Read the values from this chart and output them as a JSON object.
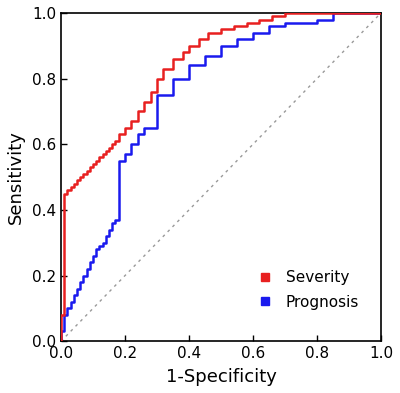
{
  "severity_fpr": [
    0.0,
    0.0,
    0.01,
    0.01,
    0.02,
    0.02,
    0.03,
    0.03,
    0.04,
    0.04,
    0.05,
    0.05,
    0.06,
    0.06,
    0.07,
    0.07,
    0.08,
    0.08,
    0.09,
    0.09,
    0.1,
    0.1,
    0.11,
    0.11,
    0.12,
    0.12,
    0.13,
    0.13,
    0.14,
    0.14,
    0.15,
    0.15,
    0.16,
    0.16,
    0.17,
    0.17,
    0.18,
    0.18,
    0.2,
    0.2,
    0.22,
    0.22,
    0.24,
    0.24,
    0.26,
    0.26,
    0.28,
    0.28,
    0.3,
    0.3,
    0.32,
    0.32,
    0.35,
    0.35,
    0.38,
    0.38,
    0.4,
    0.4,
    0.43,
    0.43,
    0.46,
    0.46,
    0.5,
    0.5,
    0.54,
    0.54,
    0.58,
    0.58,
    0.62,
    0.62,
    0.66,
    0.66,
    0.7,
    0.7,
    0.75,
    0.75,
    0.8,
    0.8,
    1.0
  ],
  "severity_tpr": [
    0.0,
    0.08,
    0.08,
    0.45,
    0.45,
    0.46,
    0.46,
    0.47,
    0.47,
    0.48,
    0.48,
    0.49,
    0.49,
    0.5,
    0.5,
    0.51,
    0.51,
    0.52,
    0.52,
    0.53,
    0.53,
    0.54,
    0.54,
    0.55,
    0.55,
    0.56,
    0.56,
    0.57,
    0.57,
    0.58,
    0.58,
    0.59,
    0.59,
    0.6,
    0.6,
    0.61,
    0.61,
    0.63,
    0.63,
    0.65,
    0.65,
    0.67,
    0.67,
    0.7,
    0.7,
    0.73,
    0.73,
    0.76,
    0.76,
    0.8,
    0.8,
    0.83,
    0.83,
    0.86,
    0.86,
    0.88,
    0.88,
    0.9,
    0.9,
    0.92,
    0.92,
    0.94,
    0.94,
    0.95,
    0.95,
    0.96,
    0.96,
    0.97,
    0.97,
    0.98,
    0.98,
    0.99,
    0.99,
    1.0,
    1.0,
    1.0,
    1.0,
    1.0,
    1.0
  ],
  "prognosis_fpr": [
    0.0,
    0.0,
    0.01,
    0.01,
    0.02,
    0.02,
    0.03,
    0.03,
    0.04,
    0.04,
    0.05,
    0.05,
    0.06,
    0.06,
    0.07,
    0.07,
    0.08,
    0.08,
    0.09,
    0.09,
    0.1,
    0.1,
    0.11,
    0.11,
    0.12,
    0.12,
    0.13,
    0.13,
    0.14,
    0.14,
    0.15,
    0.15,
    0.16,
    0.16,
    0.17,
    0.17,
    0.18,
    0.18,
    0.2,
    0.2,
    0.22,
    0.22,
    0.24,
    0.24,
    0.26,
    0.26,
    0.3,
    0.3,
    0.35,
    0.35,
    0.4,
    0.4,
    0.45,
    0.45,
    0.5,
    0.5,
    0.55,
    0.55,
    0.6,
    0.6,
    0.65,
    0.65,
    0.7,
    0.7,
    0.8,
    0.8,
    0.85,
    0.85,
    1.0
  ],
  "prognosis_tpr": [
    0.0,
    0.03,
    0.03,
    0.08,
    0.08,
    0.1,
    0.1,
    0.12,
    0.12,
    0.14,
    0.14,
    0.16,
    0.16,
    0.18,
    0.18,
    0.2,
    0.2,
    0.22,
    0.22,
    0.24,
    0.24,
    0.26,
    0.26,
    0.28,
    0.28,
    0.29,
    0.29,
    0.3,
    0.3,
    0.32,
    0.32,
    0.34,
    0.34,
    0.36,
    0.36,
    0.37,
    0.37,
    0.55,
    0.55,
    0.57,
    0.57,
    0.6,
    0.6,
    0.63,
    0.63,
    0.65,
    0.65,
    0.75,
    0.75,
    0.8,
    0.8,
    0.84,
    0.84,
    0.87,
    0.87,
    0.9,
    0.9,
    0.92,
    0.92,
    0.94,
    0.94,
    0.96,
    0.96,
    0.97,
    0.97,
    0.98,
    0.98,
    1.0,
    1.0
  ],
  "severity_color": "#e82020",
  "prognosis_color": "#1a1aee",
  "reference_color": "#999999",
  "xlabel": "1-Specificity",
  "ylabel": "Sensitivity",
  "xlim": [
    0.0,
    1.0
  ],
  "ylim": [
    0.0,
    1.0
  ],
  "xticks": [
    0.0,
    0.2,
    0.4,
    0.6,
    0.8,
    1.0
  ],
  "yticks": [
    0.0,
    0.2,
    0.4,
    0.6,
    0.8,
    1.0
  ],
  "legend_severity": "Severity",
  "legend_prognosis": "Prognosis",
  "line_width": 1.8,
  "tick_fontsize": 11,
  "label_fontsize": 13
}
